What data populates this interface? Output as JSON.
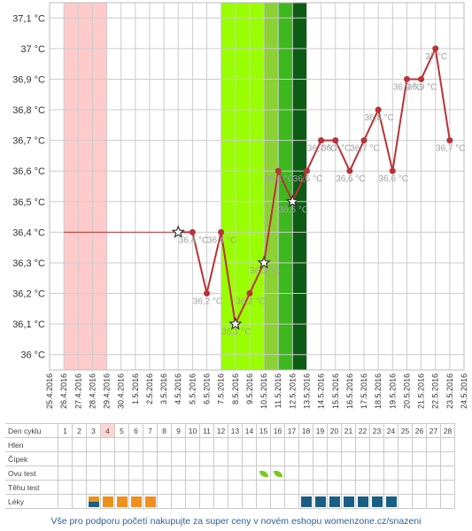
{
  "chart_data": {
    "type": "line",
    "x_dates": [
      "25.4.2016",
      "26.4.2016",
      "27.4.2016",
      "28.4.2016",
      "29.4.2016",
      "30.4.2016",
      "1.5.2016",
      "2.5.2016",
      "3.5.2016",
      "4.5.2016",
      "5.5.2016",
      "6.5.2016",
      "7.5.2016",
      "8.5.2016",
      "9.5.2016",
      "10.5.2016",
      "11.5.2016",
      "12.5.2016",
      "13.5.2016",
      "14.5.2016",
      "15.5.2016",
      "16.5.2016",
      "17.5.2016",
      "18.5.2016",
      "19.5.2016",
      "20.5.2016",
      "21.5.2016",
      "22.5.2016",
      "23.5.2016",
      "24.5.2016"
    ],
    "y_ticks": [
      "37,1 °C",
      "37 °C",
      "36,9 °C",
      "36,8 °C",
      "36,7 °C",
      "36,6 °C",
      "36,5 °C",
      "36,4 °C",
      "36,3 °C",
      "36,2 °C",
      "36,1 °C",
      "36 °C"
    ],
    "ylim": [
      35.95,
      37.15
    ],
    "baseline": {
      "from": "26.4.2016",
      "to": "4.5.2016",
      "value": 36.4
    },
    "series": [
      {
        "points": [
          {
            "date": "4.5.2016",
            "value": 36.4,
            "marker": "star",
            "label": ""
          },
          {
            "date": "5.5.2016",
            "value": 36.4,
            "marker": "dot",
            "label": "36,4 °C"
          },
          {
            "date": "6.5.2016",
            "value": 36.2,
            "marker": "dot",
            "label": "36,2 °C"
          },
          {
            "date": "7.5.2016",
            "value": 36.4,
            "marker": "dot",
            "label": "36,4 °C"
          },
          {
            "date": "8.5.2016",
            "value": 36.1,
            "marker": "star",
            "label": "36,1 °C"
          },
          {
            "date": "9.5.2016",
            "value": 36.2,
            "marker": "dot",
            "label": "36,2 °C"
          },
          {
            "date": "10.5.2016",
            "value": 36.3,
            "marker": "star",
            "label": "36,3 °C"
          },
          {
            "date": "11.5.2016",
            "value": 36.6,
            "marker": "dot",
            "label": "36,6 °C"
          },
          {
            "date": "12.5.2016",
            "value": 36.5,
            "marker": "star",
            "label": "36,5 °C"
          },
          {
            "date": "13.5.2016",
            "value": 36.6,
            "marker": "dot",
            "label": "36,6 °C"
          },
          {
            "date": "14.5.2016",
            "value": 36.7,
            "marker": "dot",
            "label": "36,7 °C"
          },
          {
            "date": "15.5.2016",
            "value": 36.7,
            "marker": "dot",
            "label": "36,7 °C"
          },
          {
            "date": "16.5.2016",
            "value": 36.6,
            "marker": "dot",
            "label": "36,6 °C"
          },
          {
            "date": "17.5.2016",
            "value": 36.7,
            "marker": "dot",
            "label": "36,7 °C"
          },
          {
            "date": "18.5.2016",
            "value": 36.8,
            "marker": "dot",
            "label": "36,8 °C"
          },
          {
            "date": "19.5.2016",
            "value": 36.6,
            "marker": "dot",
            "label": "36,6 °C"
          },
          {
            "date": "20.5.2016",
            "value": 36.9,
            "marker": "dot",
            "label": "36,9 °C"
          },
          {
            "date": "21.5.2016",
            "value": 36.9,
            "marker": "dot",
            "label": "36,9 °C"
          },
          {
            "date": "22.5.2016",
            "value": 37.0,
            "marker": "dot",
            "label": "37 °C"
          },
          {
            "date": "23.5.2016",
            "value": 36.7,
            "marker": "dot",
            "label": "36,7 °C"
          }
        ]
      }
    ],
    "bands": [
      {
        "from": "26.4.2016",
        "to": "29.4.2016",
        "color": "#ffcaca"
      },
      {
        "from": "7.5.2016",
        "to": "10.5.2016",
        "color": "#99ff00"
      },
      {
        "from": "10.5.2016",
        "to": "11.5.2016",
        "color": "#8bd134"
      },
      {
        "from": "11.5.2016",
        "to": "12.5.2016",
        "color": "#3db81f"
      },
      {
        "from": "12.5.2016",
        "to": "13.5.2016",
        "color": "#0d5c15"
      }
    ],
    "grid": true,
    "colors": {
      "line": "#b93338",
      "baseline": "#b93338",
      "label": "#a0a0a0",
      "axis_text": "#333333",
      "grid": "#cccccc"
    }
  },
  "table": {
    "row_labels": [
      "Den cyklu",
      "Hlen",
      "Čípek",
      "Ovu test",
      "Těhu test",
      "Léky"
    ],
    "days": [
      "1",
      "2",
      "3",
      "4",
      "5",
      "6",
      "7",
      "8",
      "9",
      "10",
      "11",
      "12",
      "13",
      "14",
      "15",
      "16",
      "17",
      "18",
      "19",
      "20",
      "21",
      "22",
      "23",
      "24",
      "25",
      "26",
      "27",
      "28"
    ],
    "highlight_day": "4",
    "ovu_test_days": [
      "15",
      "16"
    ],
    "leky": [
      {
        "day": "3",
        "color": "split"
      },
      {
        "day": "4",
        "color": "orange"
      },
      {
        "day": "5",
        "color": "orange"
      },
      {
        "day": "6",
        "color": "orange"
      },
      {
        "day": "7",
        "color": "orange"
      },
      {
        "day": "18",
        "color": "blue"
      },
      {
        "day": "19",
        "color": "blue"
      },
      {
        "day": "20",
        "color": "blue"
      },
      {
        "day": "21",
        "color": "blue"
      },
      {
        "day": "22",
        "color": "blue"
      },
      {
        "day": "23",
        "color": "blue"
      },
      {
        "day": "24",
        "color": "blue"
      }
    ],
    "colors": {
      "orange": "#f0901c",
      "blue": "#1a5e84",
      "highlight": "#ffd5d2",
      "ovu": "#7cc91f"
    }
  },
  "footer": {
    "text": "Vše pro podporu početí nakupujte za super ceny v novém eshopu womenzone.cz/snazeni"
  }
}
